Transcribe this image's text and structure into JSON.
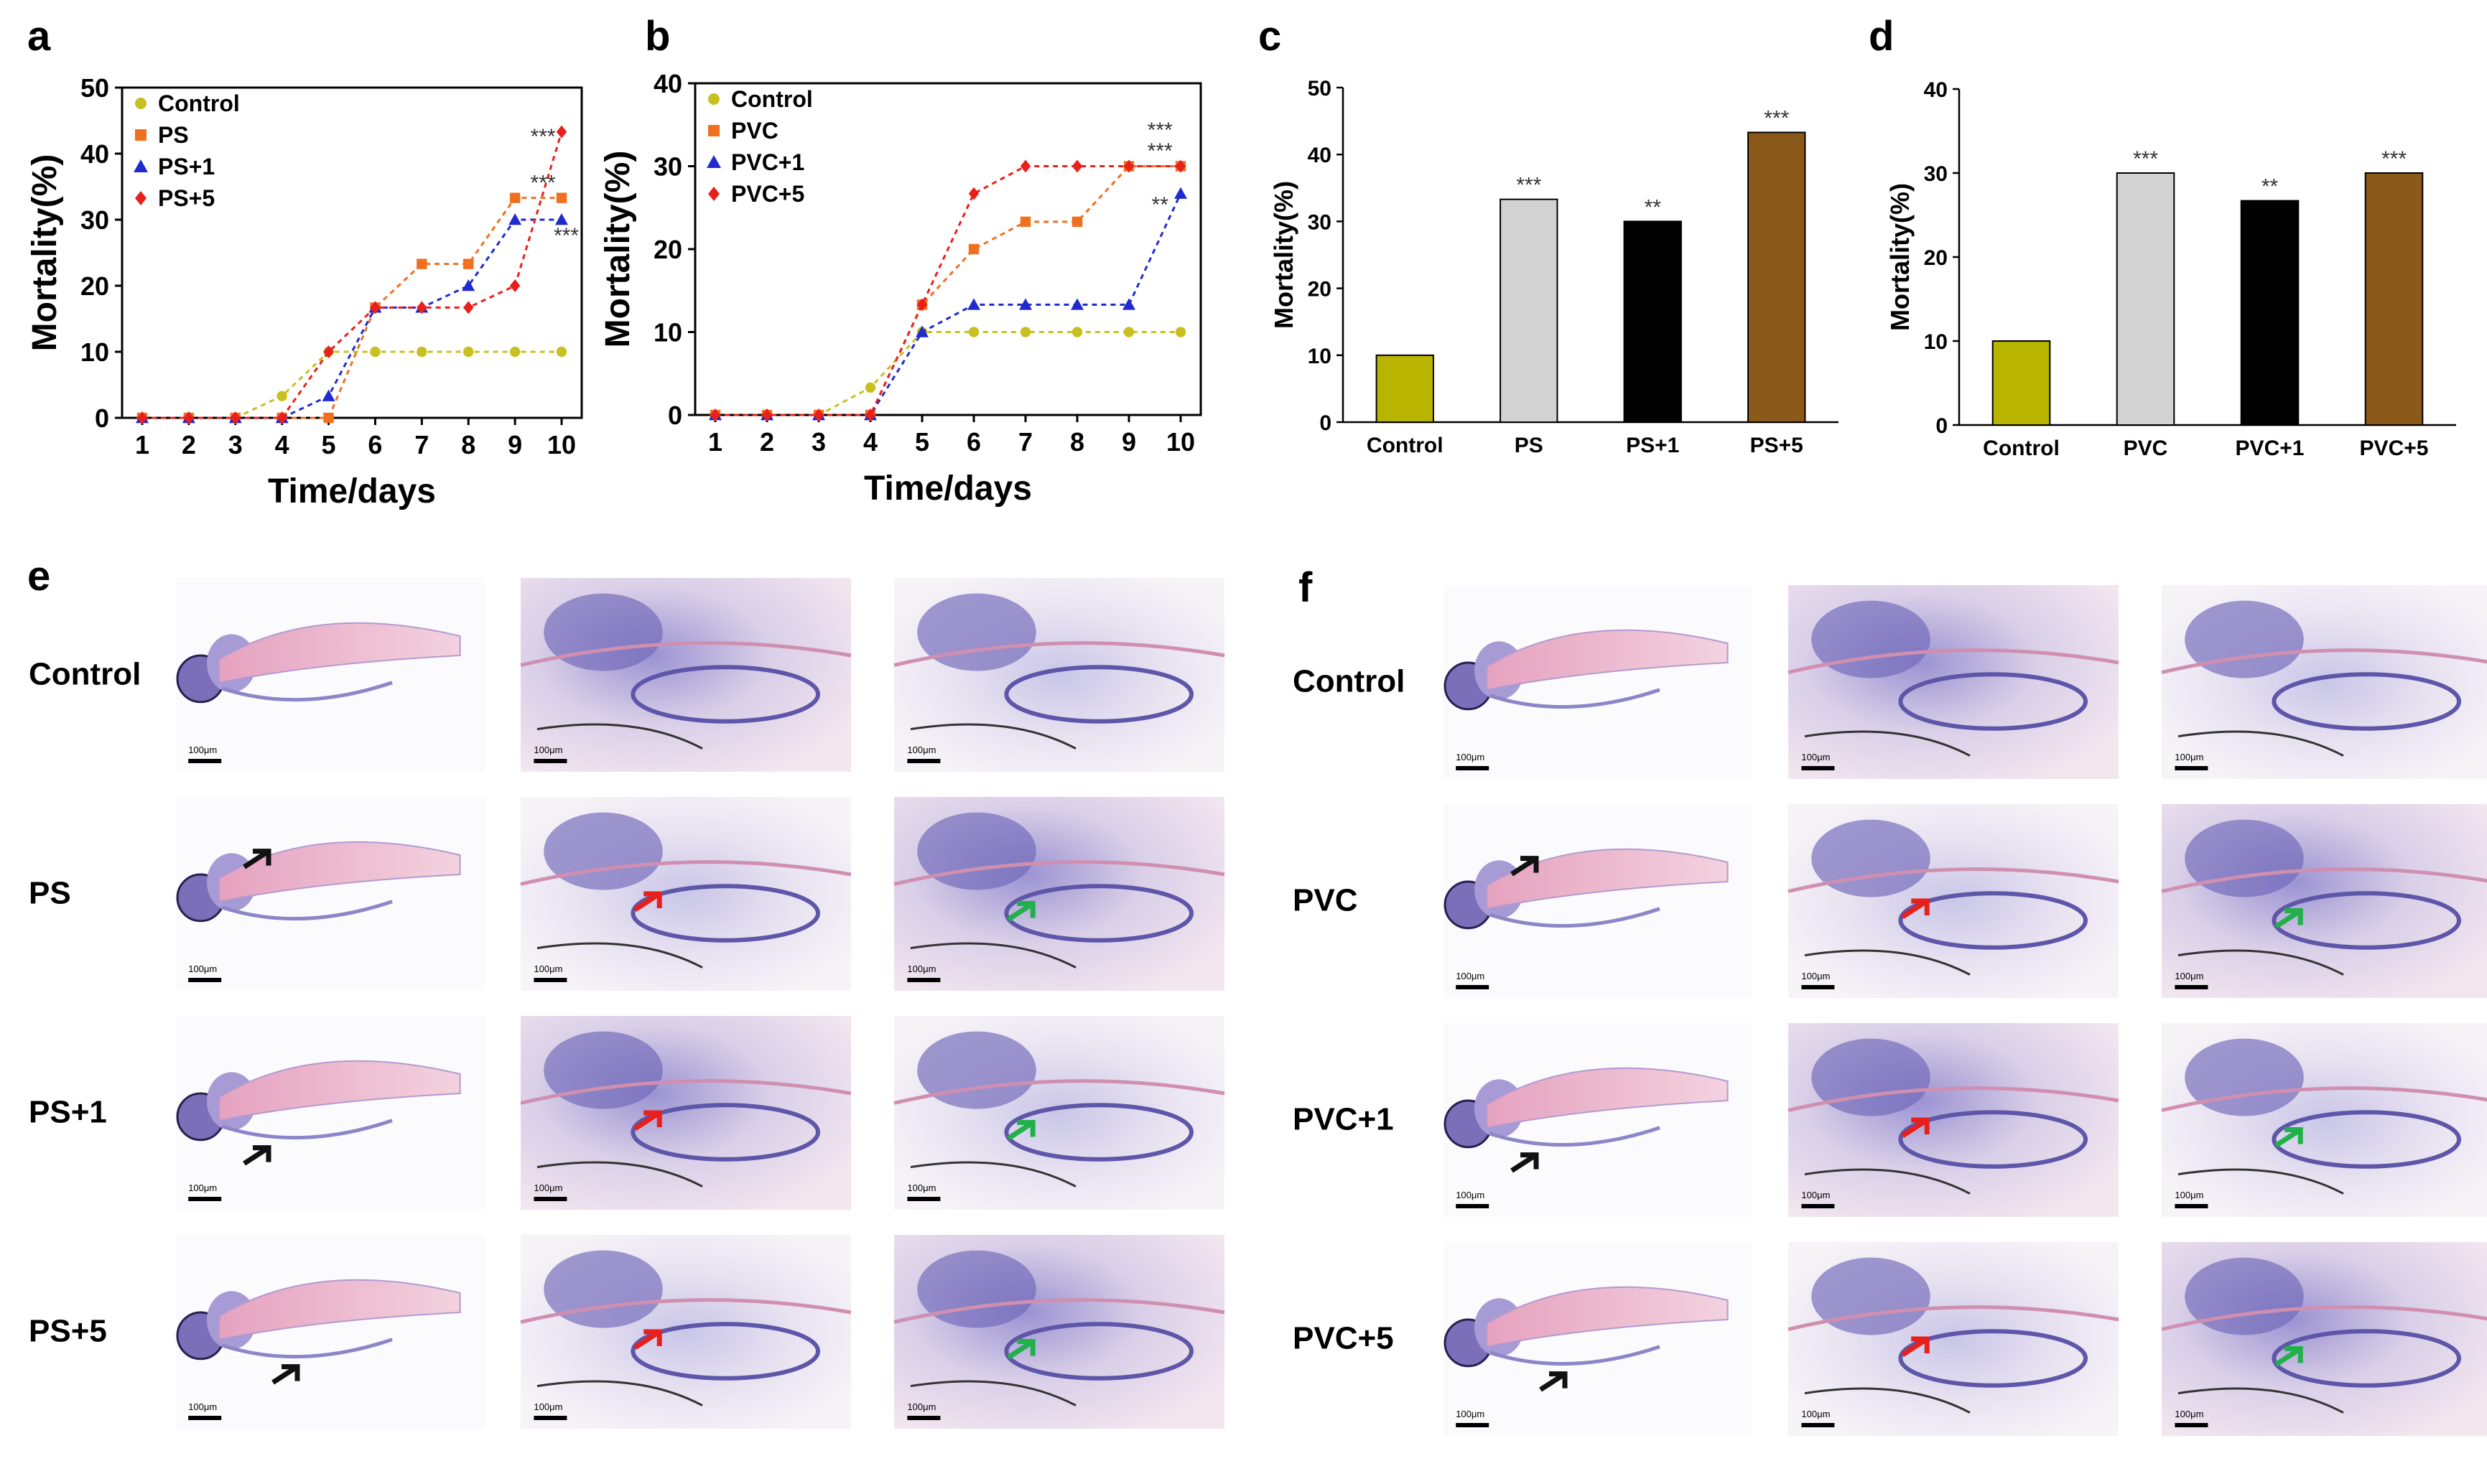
{
  "panel_labels": {
    "a": "a",
    "b": "b",
    "c": "c",
    "d": "d",
    "e": "e",
    "f": "f"
  },
  "colors": {
    "control": "#c8c020",
    "ps": "#f07020",
    "plus1": "#1f2bd0",
    "plus5": "#e8201c",
    "bar_control": "#b8b400",
    "bar_ps": "#d2d2d2",
    "bar_plus1": "#000000",
    "bar_plus5": "#8b5a1a",
    "arrow_black": "#111111",
    "arrow_red": "#e8201c",
    "arrow_green": "#22b04a"
  },
  "chart_data": [
    {
      "id": "a",
      "type": "line",
      "xlabel": "Time/days",
      "ylabel": "Mortality(%)",
      "x": [
        1,
        2,
        3,
        4,
        5,
        6,
        7,
        8,
        9,
        10
      ],
      "ylim": [
        0,
        50
      ],
      "yticks": [
        "0",
        "10",
        "20",
        "30",
        "40",
        "50"
      ],
      "xticks": [
        "1",
        "2",
        "3",
        "4",
        "5",
        "6",
        "7",
        "8",
        "9",
        "10"
      ],
      "series": [
        {
          "name": "Control",
          "marker": "circle",
          "color_key": "control",
          "values": [
            0,
            0,
            0,
            3.3,
            10,
            10,
            10,
            10,
            10,
            10
          ]
        },
        {
          "name": "PS",
          "marker": "square",
          "color_key": "ps",
          "values": [
            0,
            0,
            0,
            0,
            0,
            16.7,
            23.3,
            23.3,
            33.3,
            33.3
          ]
        },
        {
          "name": "PS+1",
          "marker": "triangle",
          "color_key": "plus1",
          "values": [
            0,
            0,
            0,
            0,
            3.3,
            16.7,
            16.7,
            20,
            30,
            30
          ]
        },
        {
          "name": "PS+5",
          "marker": "diamond",
          "color_key": "plus5",
          "values": [
            0,
            0,
            0,
            0,
            10,
            16.7,
            16.7,
            16.7,
            20,
            43.3
          ]
        }
      ],
      "annotations": [
        {
          "text": "***",
          "x": 9.6,
          "y": 41.5
        },
        {
          "text": "***",
          "x": 9.6,
          "y": 34.5
        },
        {
          "text": "***",
          "x": 10.1,
          "y": 26.5
        }
      ]
    },
    {
      "id": "b",
      "type": "line",
      "xlabel": "Time/days",
      "ylabel": "Mortality(%)",
      "x": [
        1,
        2,
        3,
        4,
        5,
        6,
        7,
        8,
        9,
        10
      ],
      "ylim": [
        0,
        40
      ],
      "yticks": [
        "0",
        "10",
        "20",
        "30",
        "40"
      ],
      "xticks": [
        "1",
        "2",
        "3",
        "4",
        "5",
        "6",
        "7",
        "8",
        "9",
        "10"
      ],
      "series": [
        {
          "name": "Control",
          "marker": "circle",
          "color_key": "control",
          "values": [
            0,
            0,
            0,
            3.3,
            10,
            10,
            10,
            10,
            10,
            10
          ]
        },
        {
          "name": "PVC",
          "marker": "square",
          "color_key": "ps",
          "values": [
            0,
            0,
            0,
            0,
            13.3,
            20,
            23.3,
            23.3,
            30,
            30
          ]
        },
        {
          "name": "PVC+1",
          "marker": "triangle",
          "color_key": "plus1",
          "values": [
            0,
            0,
            0,
            0,
            10,
            13.3,
            13.3,
            13.3,
            13.3,
            26.7
          ]
        },
        {
          "name": "PVC+5",
          "marker": "diamond",
          "color_key": "plus5",
          "values": [
            0,
            0,
            0,
            0,
            13.3,
            26.7,
            30,
            30,
            30,
            30
          ]
        }
      ],
      "annotations": [
        {
          "text": "***",
          "x": 9.6,
          "y": 33.5
        },
        {
          "text": "***",
          "x": 9.6,
          "y": 31
        },
        {
          "text": "**",
          "x": 9.6,
          "y": 24.5
        }
      ]
    },
    {
      "id": "c",
      "type": "bar",
      "ylabel": "Mortality(%)",
      "categories": [
        "Control",
        "PS",
        "PS+1",
        "PS+5"
      ],
      "values": [
        10,
        33.3,
        30,
        43.3
      ],
      "color_keys": [
        "bar_control",
        "bar_ps",
        "bar_plus1",
        "bar_plus5"
      ],
      "significance": [
        "",
        "***",
        "**",
        "***"
      ],
      "ylim": [
        0,
        50
      ],
      "yticks": [
        "0",
        "10",
        "20",
        "30",
        "40",
        "50"
      ]
    },
    {
      "id": "d",
      "type": "bar",
      "ylabel": "Mortality(%)",
      "categories": [
        "Control",
        "PVC",
        "PVC+1",
        "PVC+5"
      ],
      "values": [
        10,
        30,
        26.7,
        30
      ],
      "color_keys": [
        "bar_control",
        "bar_ps",
        "bar_plus1",
        "bar_plus5"
      ],
      "significance": [
        "",
        "***",
        "**",
        "***"
      ],
      "ylim": [
        0,
        40
      ],
      "yticks": [
        "0",
        "10",
        "20",
        "30",
        "40"
      ]
    }
  ],
  "histology": {
    "scale_bar": "100μm",
    "e_rows": [
      "Control",
      "PS",
      "PS+1",
      "PS+5"
    ],
    "f_rows": [
      "Control",
      "PVC",
      "PVC+1",
      "PVC+5"
    ]
  }
}
